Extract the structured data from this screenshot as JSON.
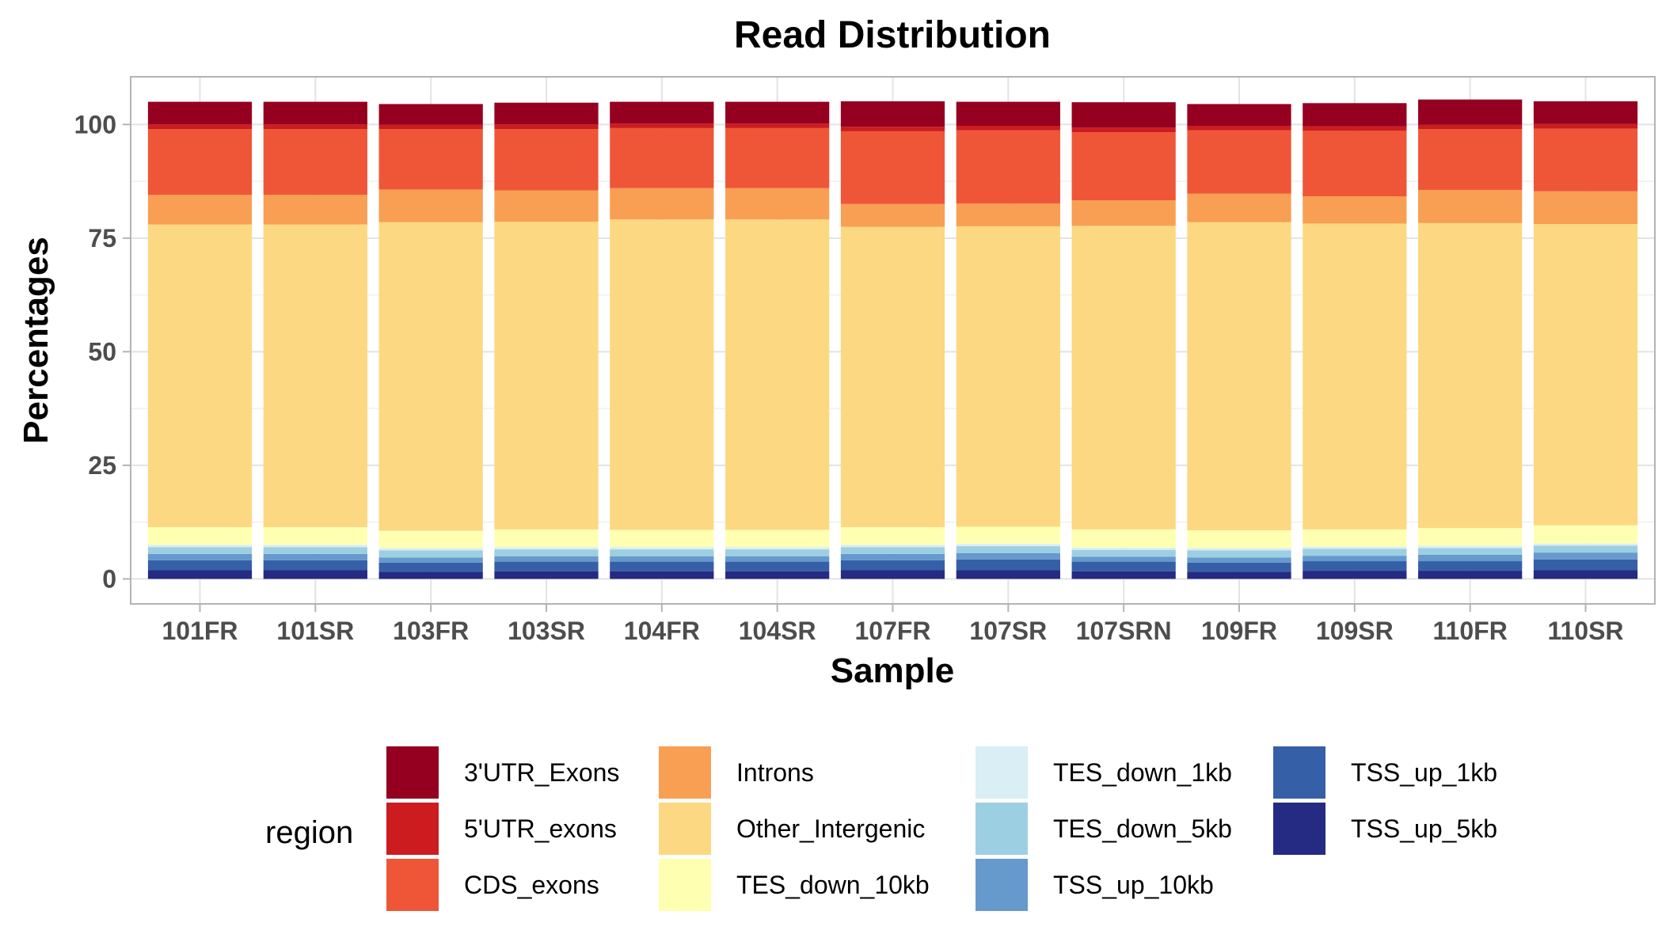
{
  "chart_data": {
    "type": "bar",
    "stacked": true,
    "title": "Read Distribution",
    "xlabel": "Sample",
    "ylabel": "Percentages",
    "ylim": [
      -5.5,
      110.5
    ],
    "yticks": [
      0,
      25,
      50,
      75,
      100
    ],
    "grid": true,
    "legend_title": "region",
    "legend_position": "bottom",
    "categories": [
      "101FR",
      "101SR",
      "103FR",
      "103SR",
      "104FR",
      "104SR",
      "107FR",
      "107SR",
      "107SRN",
      "109FR",
      "109SR",
      "110FR",
      "110SR"
    ],
    "series": [
      {
        "name": "TSS_up_5kb",
        "color": "#252a82",
        "values": [
          1.9,
          1.9,
          1.6,
          1.7,
          1.7,
          1.7,
          1.9,
          1.9,
          1.7,
          1.6,
          1.8,
          1.8,
          1.9
        ]
      },
      {
        "name": "TSS_up_1kb",
        "color": "#3560a8",
        "values": [
          2.2,
          2.2,
          2.0,
          2.1,
          2.1,
          2.1,
          2.2,
          2.4,
          2.1,
          2.0,
          2.1,
          2.1,
          2.4
        ]
      },
      {
        "name": "TSS_up_10kb",
        "color": "#6699cc",
        "values": [
          1.4,
          1.4,
          1.1,
          1.2,
          1.2,
          1.2,
          1.4,
          1.4,
          1.1,
          1.1,
          1.2,
          1.4,
          1.5
        ]
      },
      {
        "name": "TES_down_5kb",
        "color": "#9dcfe3",
        "values": [
          1.5,
          1.5,
          1.6,
          1.5,
          1.5,
          1.5,
          1.5,
          1.5,
          1.5,
          1.6,
          1.5,
          1.5,
          1.5
        ]
      },
      {
        "name": "TES_down_1kb",
        "color": "#d9eef5",
        "values": [
          0.5,
          0.5,
          0.5,
          0.5,
          0.5,
          0.5,
          0.5,
          0.5,
          0.5,
          0.5,
          0.5,
          0.5,
          0.5
        ]
      },
      {
        "name": "TES_down_10kb",
        "color": "#ffffb2",
        "values": [
          3.9,
          3.9,
          3.8,
          3.9,
          3.8,
          3.8,
          3.9,
          3.8,
          4.0,
          3.9,
          3.8,
          3.9,
          4.0
        ]
      },
      {
        "name": "Other_Intergenic",
        "color": "#fcd882",
        "values": [
          66.6,
          66.6,
          67.9,
          67.7,
          68.3,
          68.3,
          66.1,
          66.1,
          66.8,
          67.8,
          67.3,
          67.1,
          66.3
        ]
      },
      {
        "name": "Introns",
        "color": "#f89f53",
        "values": [
          6.5,
          6.5,
          7.2,
          6.9,
          6.9,
          6.9,
          5.0,
          5.0,
          5.6,
          6.3,
          6.0,
          7.3,
          7.2
        ]
      },
      {
        "name": "CDS_exons",
        "color": "#ef5638",
        "values": [
          14.5,
          14.5,
          13.3,
          13.5,
          13.2,
          13.2,
          16.0,
          16.1,
          15.0,
          13.9,
          14.4,
          13.4,
          13.8
        ]
      },
      {
        "name": "5'UTR_exons",
        "color": "#cc1c20",
        "values": [
          1.0,
          1.0,
          0.9,
          1.0,
          1.0,
          1.0,
          1.0,
          1.0,
          1.0,
          1.0,
          1.0,
          0.9,
          1.0
        ]
      },
      {
        "name": "3'UTR_Exons",
        "color": "#950020",
        "values": [
          5.0,
          5.0,
          4.6,
          4.8,
          4.8,
          4.8,
          5.6,
          5.3,
          5.6,
          4.8,
          5.1,
          5.6,
          5.0
        ]
      }
    ],
    "legend_order": [
      "3'UTR_Exons",
      "5'UTR_exons",
      "CDS_exons",
      "Introns",
      "Other_Intergenic",
      "TES_down_10kb",
      "TES_down_1kb",
      "TES_down_5kb",
      "TSS_up_10kb",
      "TSS_up_1kb",
      "TSS_up_5kb"
    ]
  }
}
